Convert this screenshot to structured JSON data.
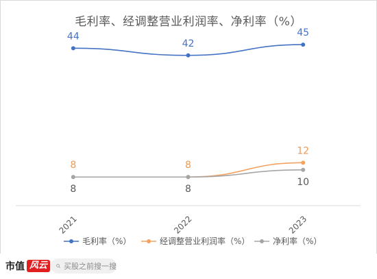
{
  "chart_data": {
    "type": "line",
    "title": "毛利率、经调整营业利润率、净利率（%）",
    "categories": [
      "2021",
      "2022",
      "2023"
    ],
    "series": [
      {
        "name": "毛利率（%）",
        "color": "#4472c4",
        "label_color": "#4472c4",
        "values": [
          44,
          42,
          45
        ],
        "labels": [
          "44",
          "42",
          "45"
        ]
      },
      {
        "name": "经调整营业利润率（%）",
        "color": "#f4a261",
        "label_color": "#ed9a55",
        "values": [
          8,
          8,
          12
        ],
        "labels": [
          "8",
          "8",
          "12"
        ]
      },
      {
        "name": "净利率（%）",
        "color": "#a5a5a5",
        "label_color": "#595959",
        "values": [
          8,
          8,
          10
        ],
        "labels": [
          "8",
          "8",
          "10"
        ]
      }
    ],
    "ylim": [
      0,
      50
    ],
    "grid": false,
    "legend": "bottom"
  },
  "footer": {
    "brand": "市值",
    "brand_badge": "风云",
    "search_placeholder": "买股之前搜一搜",
    "search_icon": "search-icon"
  }
}
